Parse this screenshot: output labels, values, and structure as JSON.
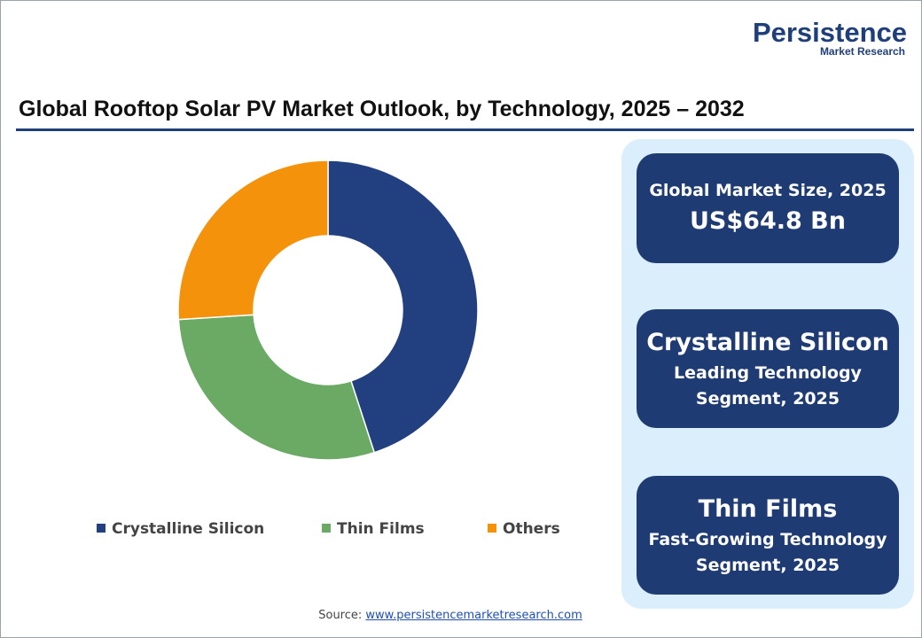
{
  "logo": {
    "name": "Persistence",
    "tagline": "Market Research"
  },
  "chart_data": {
    "type": "pie",
    "title": "Global Rooftop Solar PV Market Outlook, by Technology, 2025 – 2032",
    "categories": [
      "Crystalline Silicon",
      "Thin Films",
      "Others"
    ],
    "values": [
      45,
      29,
      26
    ],
    "colors": [
      "#22407f",
      "#6aaa64",
      "#f5920b"
    ],
    "donut": true
  },
  "cards": [
    {
      "lines": [
        "Global Market Size, 2025",
        "US$64.8 Bn"
      ]
    },
    {
      "lines": [
        "Crystalline Silicon",
        "Leading Technology",
        "Segment, 2025"
      ]
    },
    {
      "lines": [
        "Thin Films",
        "Fast-Growing Technology",
        "Segment, 2025"
      ]
    }
  ],
  "source": {
    "label": "Source:",
    "link": "www.persistencemarketresearch.com"
  }
}
